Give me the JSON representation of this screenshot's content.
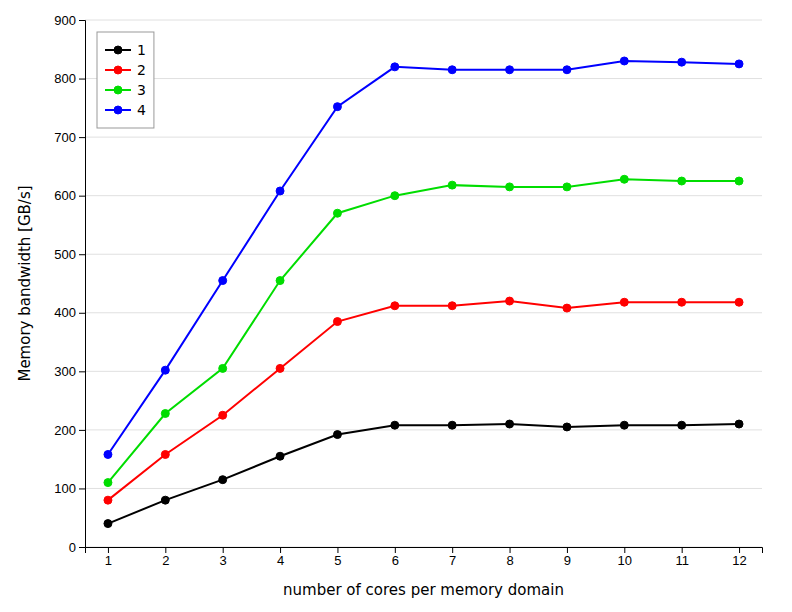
{
  "chart_data": {
    "type": "line",
    "x": [
      1,
      2,
      3,
      4,
      5,
      6,
      7,
      8,
      9,
      10,
      11,
      12
    ],
    "series": [
      {
        "name": "1",
        "color": "#000000",
        "values": [
          40,
          80,
          115,
          155,
          192,
          208,
          208,
          210,
          205,
          208,
          208,
          210
        ]
      },
      {
        "name": "2",
        "color": "#ff0000",
        "values": [
          80,
          158,
          225,
          305,
          385,
          412,
          412,
          420,
          408,
          418,
          418,
          418
        ]
      },
      {
        "name": "3",
        "color": "#00dd00",
        "values": [
          110,
          228,
          305,
          455,
          570,
          600,
          618,
          615,
          615,
          628,
          625,
          625
        ]
      },
      {
        "name": "4",
        "color": "#0000ff",
        "values": [
          158,
          302,
          455,
          608,
          752,
          820,
          815,
          815,
          815,
          830,
          828,
          825
        ]
      }
    ],
    "xlabel": "number of cores per memory domain",
    "ylabel": "Memory bandwidth [GB/s]",
    "xlim": [
      0.6,
      12.4
    ],
    "ylim": [
      0,
      900
    ],
    "xticks": [
      1,
      2,
      3,
      4,
      5,
      6,
      7,
      8,
      9,
      10,
      11,
      12
    ],
    "yticks": [
      0,
      100,
      200,
      300,
      400,
      500,
      600,
      700,
      800,
      900
    ],
    "marker": "circle",
    "grid": "y",
    "legend": "upper left"
  }
}
